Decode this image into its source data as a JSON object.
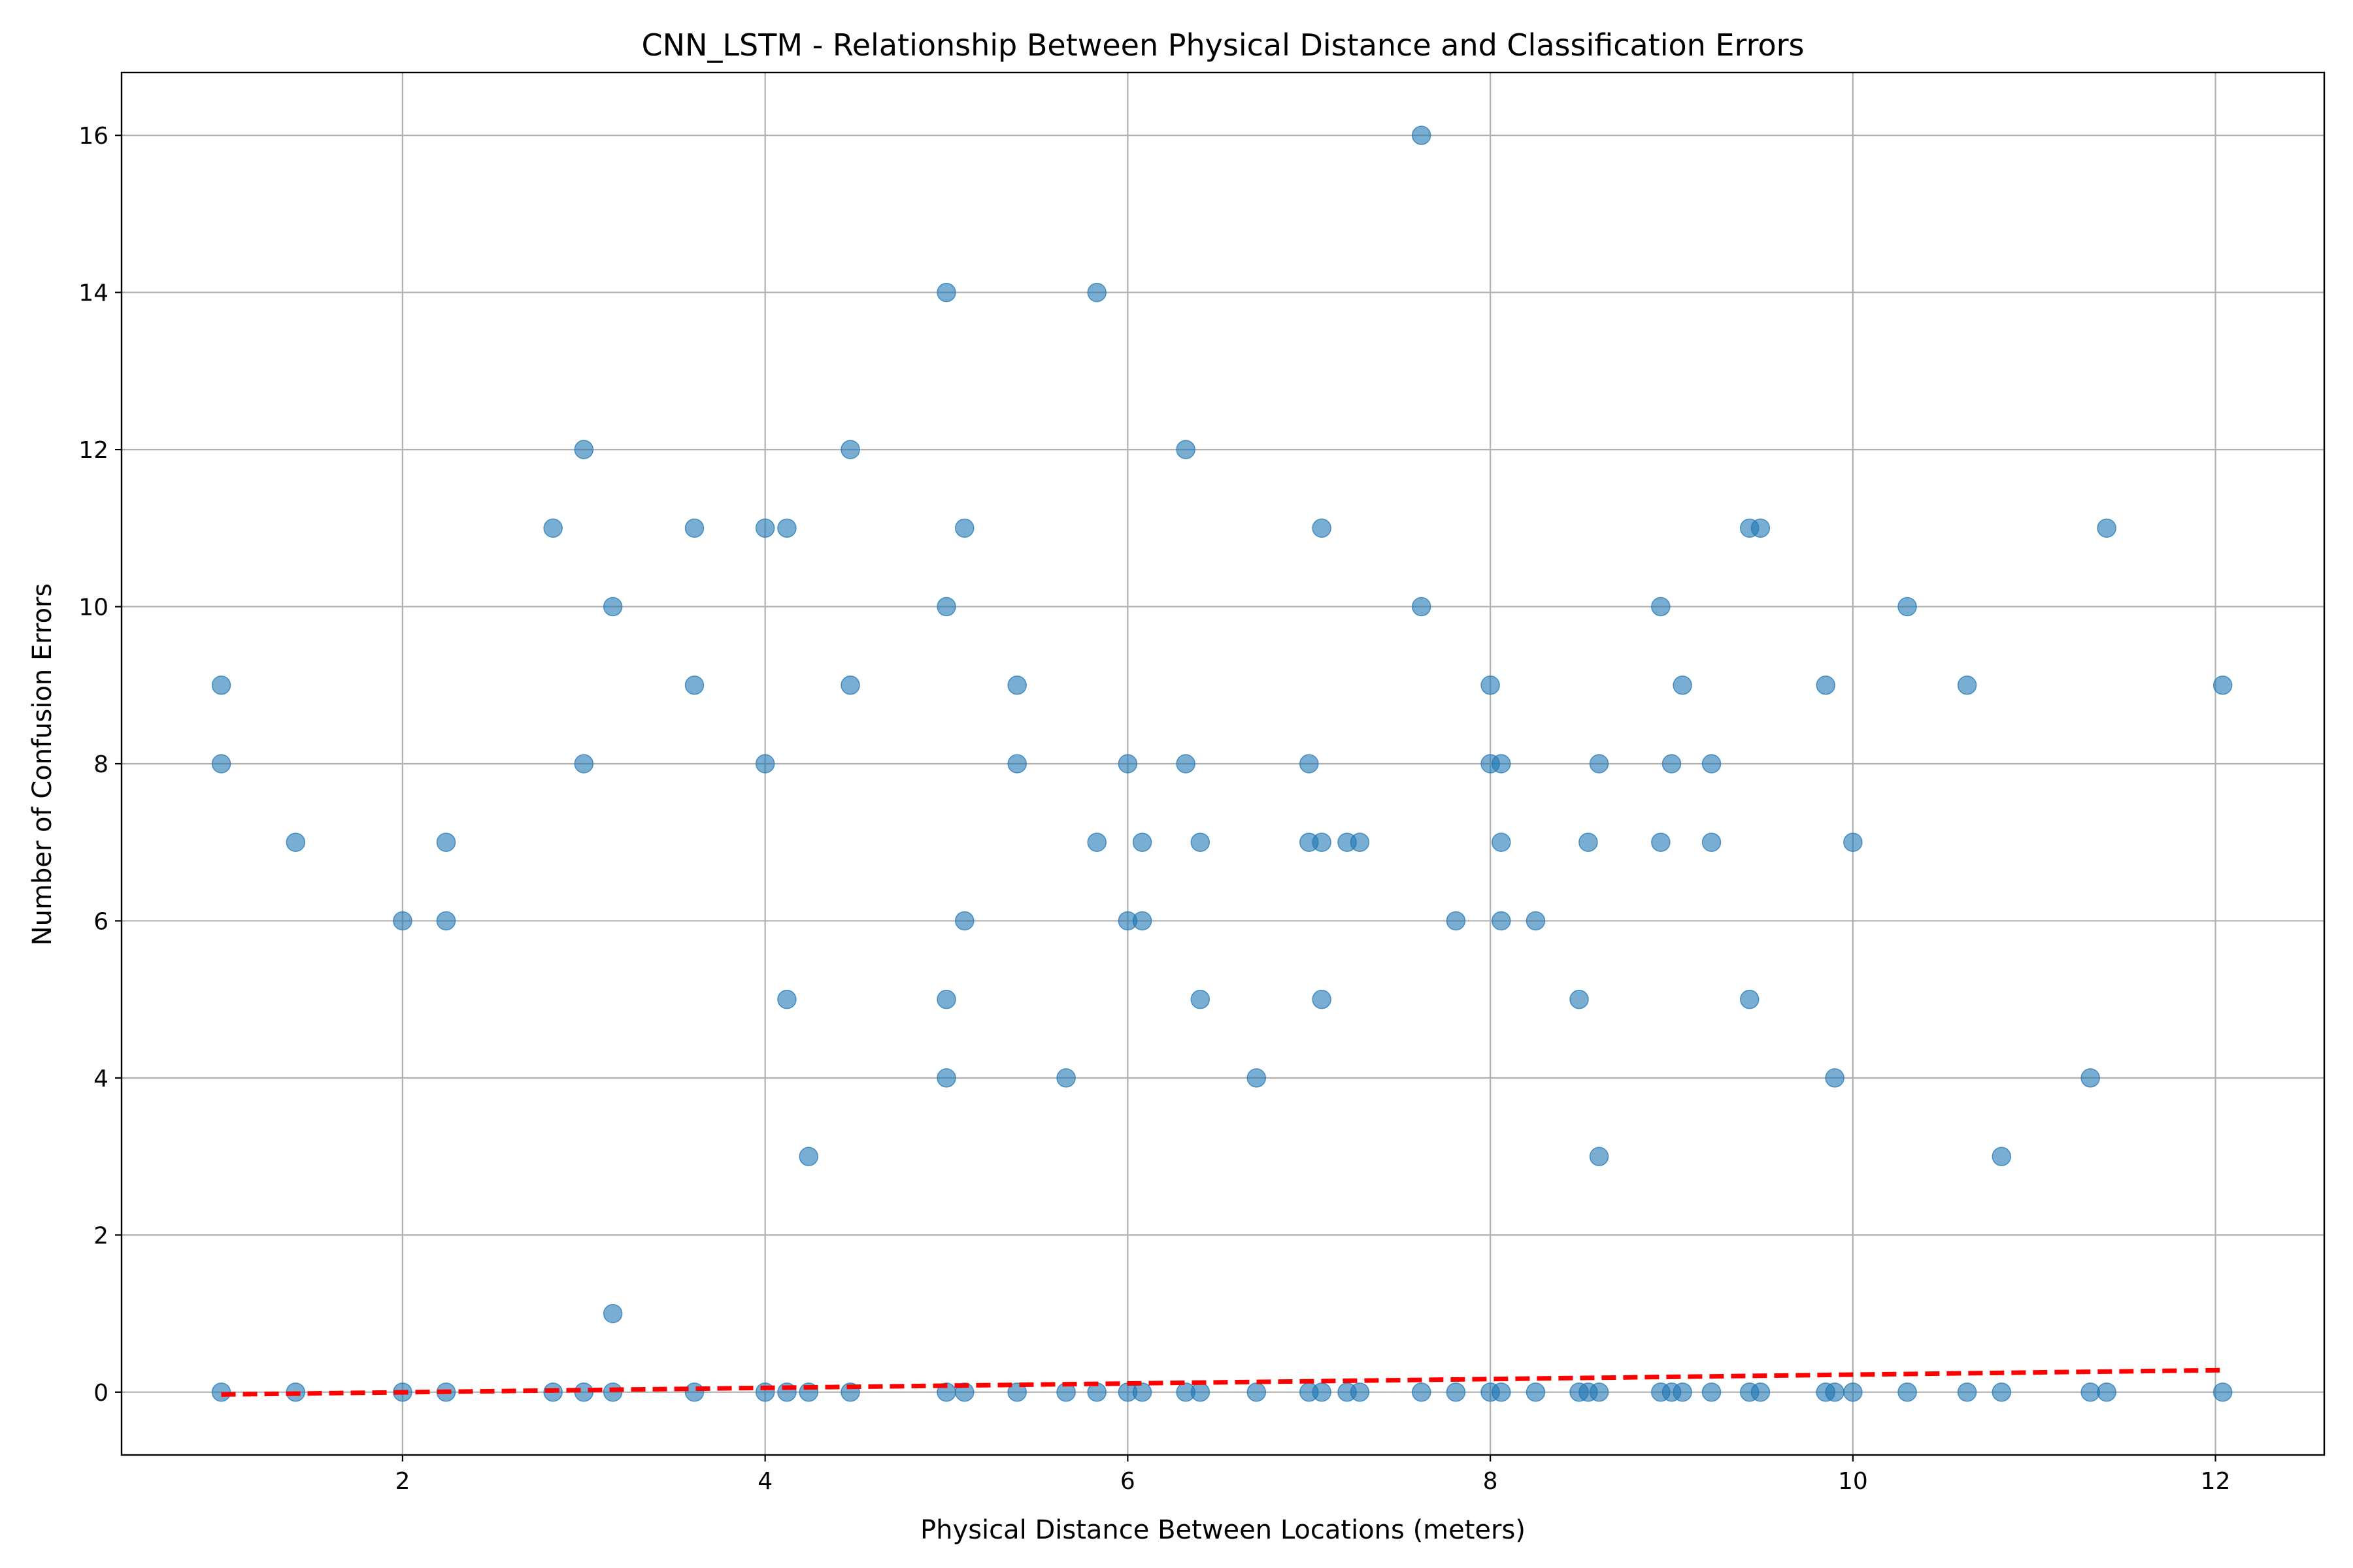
{
  "chart_data": {
    "type": "scatter",
    "title": "CNN_LSTM - Relationship Between Physical Distance and Classification Errors",
    "xlabel": "Physical Distance Between Locations (meters)",
    "ylabel": "Number of Confusion Errors",
    "xlim": [
      0.45,
      12.6
    ],
    "ylim": [
      -0.8,
      16.8
    ],
    "xticks": [
      2,
      4,
      6,
      8,
      10,
      12
    ],
    "yticks": [
      0,
      2,
      4,
      6,
      8,
      10,
      12,
      14,
      16
    ],
    "grid": true,
    "legend": "none",
    "series": [
      {
        "type": "scatter",
        "color": "#1f77b4",
        "alpha": 0.6,
        "points": [
          [
            1.0,
            9
          ],
          [
            1.0,
            8
          ],
          [
            1.41,
            7
          ],
          [
            2.0,
            6
          ],
          [
            2.24,
            7
          ],
          [
            2.24,
            6
          ],
          [
            2.83,
            11
          ],
          [
            3.0,
            12
          ],
          [
            3.0,
            8
          ],
          [
            3.16,
            10
          ],
          [
            3.16,
            1
          ],
          [
            3.61,
            11
          ],
          [
            3.61,
            9
          ],
          [
            4.0,
            11
          ],
          [
            4.0,
            8
          ],
          [
            4.12,
            11
          ],
          [
            4.12,
            5
          ],
          [
            4.24,
            3
          ],
          [
            4.47,
            12
          ],
          [
            4.47,
            9
          ],
          [
            5.0,
            14
          ],
          [
            5.0,
            10
          ],
          [
            5.0,
            5
          ],
          [
            5.0,
            4
          ],
          [
            5.1,
            11
          ],
          [
            5.1,
            6
          ],
          [
            5.39,
            9
          ],
          [
            5.39,
            8
          ],
          [
            5.66,
            4
          ],
          [
            5.83,
            14
          ],
          [
            5.83,
            7
          ],
          [
            6.0,
            8
          ],
          [
            6.0,
            6
          ],
          [
            6.08,
            7
          ],
          [
            6.08,
            6
          ],
          [
            6.32,
            12
          ],
          [
            6.32,
            8
          ],
          [
            6.4,
            7
          ],
          [
            6.4,
            5
          ],
          [
            6.71,
            4
          ],
          [
            7.0,
            8
          ],
          [
            7.0,
            7
          ],
          [
            7.07,
            11
          ],
          [
            7.07,
            7
          ],
          [
            7.07,
            5
          ],
          [
            7.21,
            7
          ],
          [
            7.28,
            7
          ],
          [
            7.62,
            16
          ],
          [
            7.62,
            10
          ],
          [
            7.81,
            6
          ],
          [
            8.0,
            9
          ],
          [
            8.0,
            8
          ],
          [
            8.06,
            8
          ],
          [
            8.06,
            7
          ],
          [
            8.06,
            6
          ],
          [
            8.25,
            6
          ],
          [
            8.49,
            5
          ],
          [
            8.54,
            7
          ],
          [
            8.6,
            8
          ],
          [
            8.6,
            3
          ],
          [
            8.94,
            10
          ],
          [
            8.94,
            7
          ],
          [
            9.0,
            8
          ],
          [
            9.06,
            9
          ],
          [
            9.22,
            8
          ],
          [
            9.22,
            7
          ],
          [
            9.43,
            11
          ],
          [
            9.43,
            5
          ],
          [
            9.49,
            11
          ],
          [
            9.85,
            9
          ],
          [
            9.9,
            4
          ],
          [
            10.0,
            7
          ],
          [
            10.3,
            10
          ],
          [
            10.63,
            9
          ],
          [
            10.82,
            3
          ],
          [
            11.31,
            4
          ],
          [
            11.4,
            11
          ],
          [
            12.04,
            9
          ],
          [
            1.0,
            0
          ],
          [
            1.41,
            0
          ],
          [
            2.0,
            0
          ],
          [
            2.24,
            0
          ],
          [
            2.83,
            0
          ],
          [
            3.0,
            0
          ],
          [
            3.16,
            0
          ],
          [
            3.61,
            0
          ],
          [
            4.0,
            0
          ],
          [
            4.12,
            0
          ],
          [
            4.24,
            0
          ],
          [
            4.47,
            0
          ],
          [
            5.0,
            0
          ],
          [
            5.1,
            0
          ],
          [
            5.39,
            0
          ],
          [
            5.66,
            0
          ],
          [
            5.83,
            0
          ],
          [
            6.0,
            0
          ],
          [
            6.08,
            0
          ],
          [
            6.32,
            0
          ],
          [
            6.4,
            0
          ],
          [
            6.71,
            0
          ],
          [
            7.0,
            0
          ],
          [
            7.07,
            0
          ],
          [
            7.21,
            0
          ],
          [
            7.28,
            0
          ],
          [
            7.62,
            0
          ],
          [
            7.81,
            0
          ],
          [
            8.0,
            0
          ],
          [
            8.06,
            0
          ],
          [
            8.25,
            0
          ],
          [
            8.49,
            0
          ],
          [
            8.54,
            0
          ],
          [
            8.6,
            0
          ],
          [
            8.94,
            0
          ],
          [
            9.0,
            0
          ],
          [
            9.06,
            0
          ],
          [
            9.22,
            0
          ],
          [
            9.43,
            0
          ],
          [
            9.49,
            0
          ],
          [
            9.85,
            0
          ],
          [
            9.9,
            0
          ],
          [
            10.0,
            0
          ],
          [
            10.3,
            0
          ],
          [
            10.63,
            0
          ],
          [
            10.82,
            0
          ],
          [
            11.31,
            0
          ],
          [
            11.4,
            0
          ],
          [
            12.04,
            0
          ]
        ]
      },
      {
        "type": "line",
        "style": "dashed",
        "color": "#ff0000",
        "points": [
          [
            1.0,
            -0.03
          ],
          [
            12.04,
            0.28
          ]
        ]
      }
    ]
  }
}
